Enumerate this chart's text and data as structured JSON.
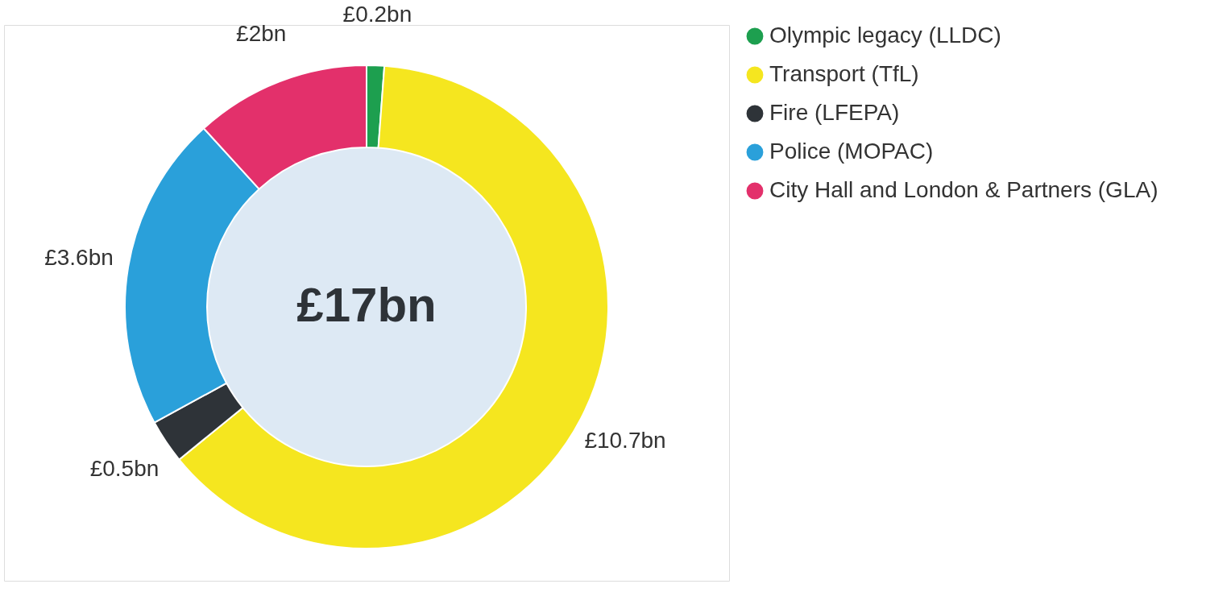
{
  "chart_data": {
    "type": "donut",
    "categories": [
      "Olympic legacy (LLDC)",
      "Transport (TfL)",
      "Fire (LFEPA)",
      "Police (MOPAC)",
      "City Hall and London & Partners (GLA)"
    ],
    "values": [
      0.2,
      10.7,
      0.5,
      3.6,
      2
    ],
    "colors": [
      "#1d9f4f",
      "#f5e61f",
      "#2e3338",
      "#2aa0da",
      "#e3306b"
    ],
    "value_labels": [
      "£0.2bn",
      "£10.7bn",
      "£0.5bn",
      "£3.6bn",
      "£2bn"
    ],
    "annotations": [
      "£17bn"
    ],
    "legend": "right"
  }
}
